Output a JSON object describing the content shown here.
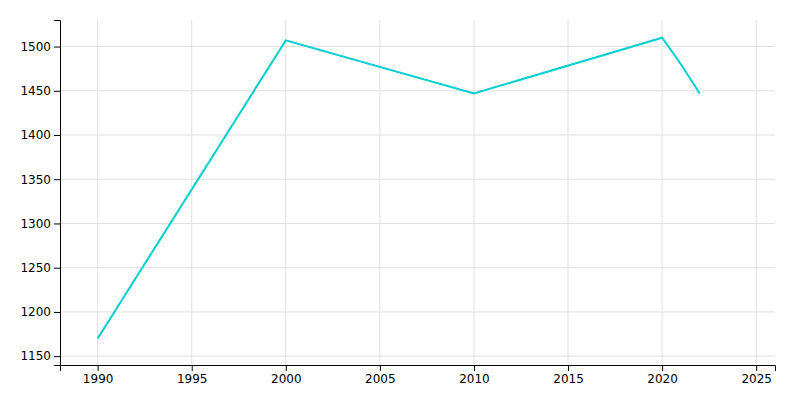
{
  "chart_data": {
    "type": "line",
    "x": [
      1990,
      2000,
      2010,
      2020,
      2021,
      2022
    ],
    "values": [
      1170,
      1507,
      1447,
      1510,
      1480,
      1447
    ],
    "color": "#00CED1",
    "xlim": [
      1988,
      2026
    ],
    "ylim": [
      1140,
      1530
    ],
    "xticks": [
      1990,
      1995,
      2000,
      2005,
      2010,
      2015,
      2020,
      2025
    ],
    "yticks": [
      1150,
      1200,
      1250,
      1300,
      1350,
      1400,
      1450,
      1500
    ],
    "grid": true
  }
}
